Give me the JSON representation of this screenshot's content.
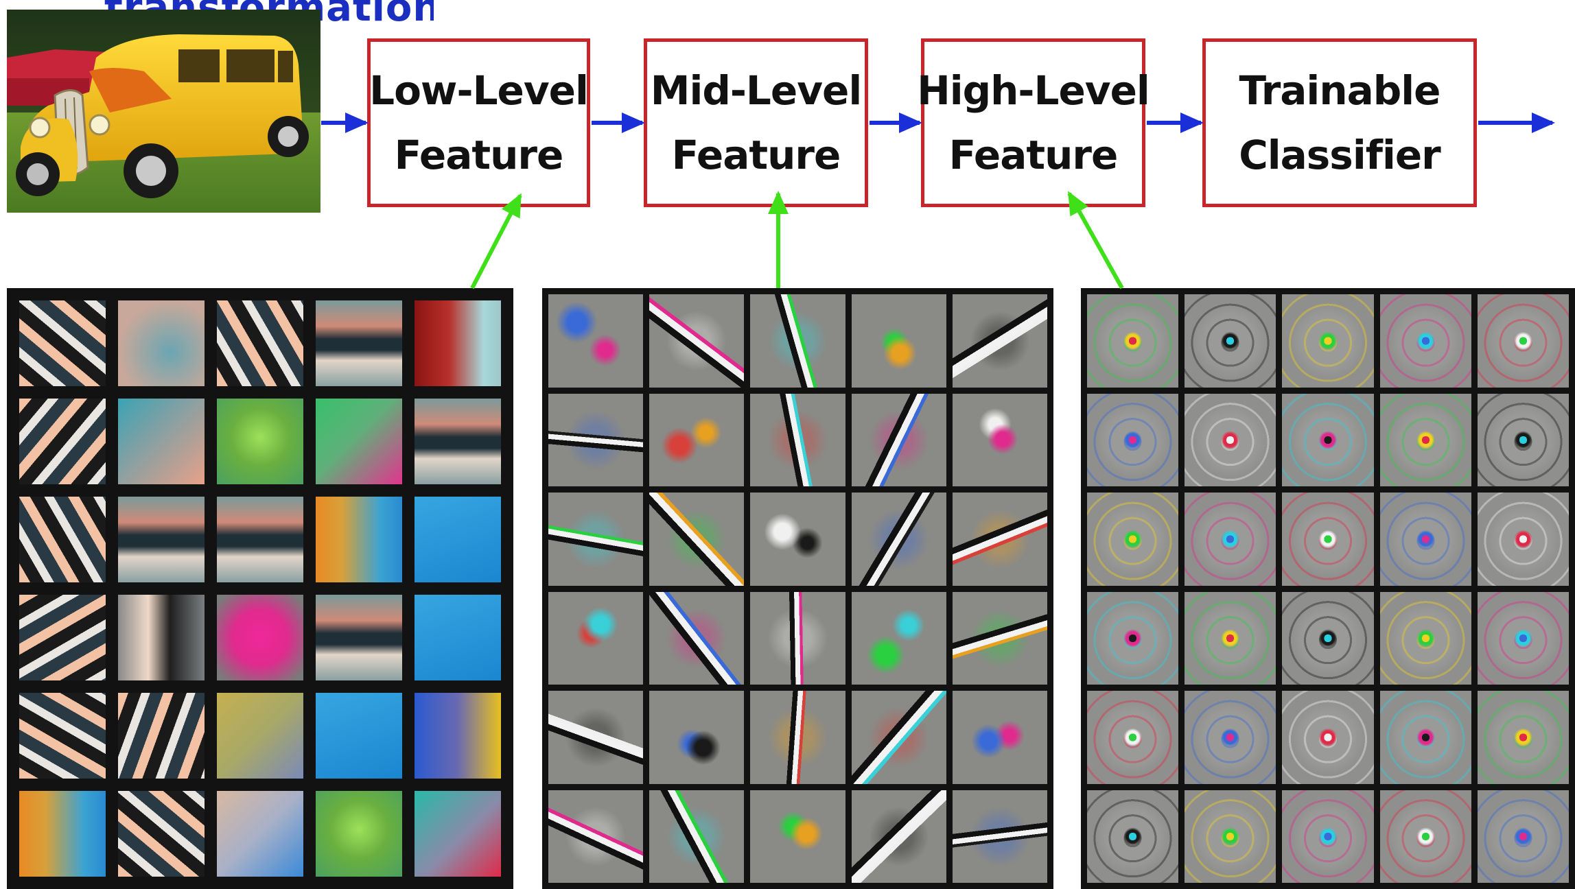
{
  "title_partial": "transformation",
  "input_image": {
    "description": "yellow vintage car on grass",
    "car_color": "#f2c51a",
    "grass_color": "#5f8c2a"
  },
  "stages": [
    {
      "line1": "Low-Level",
      "line2": "Feature"
    },
    {
      "line1": "Mid-Level",
      "line2": "Feature"
    },
    {
      "line1": "High-Level",
      "line2": "Feature"
    },
    {
      "line1": "Trainable",
      "line2": "Classifier"
    }
  ],
  "colors": {
    "flow_arrow": "#1a2fd8",
    "feedback_arrow": "#3fe01a",
    "box_border": "#c8262b",
    "title": "#1a2fbf"
  },
  "feature_panels": [
    {
      "name": "low-level-filters",
      "rows": 6,
      "cols": 5,
      "cells": [
        [
          "stripes-diag",
          "blur-peach",
          "stripes-diag",
          "stripe-horiz",
          "red-cyan"
        ],
        [
          "stripes-diag",
          "peach-teal",
          "green-blob",
          "green-magenta",
          "stripe-horiz"
        ],
        [
          "stripes-diag",
          "stripe-horiz",
          "stripe-horiz",
          "orange-blue",
          "blue-flat"
        ],
        [
          "stripes-diag",
          "stripe-vert",
          "magenta-blob",
          "stripe-horiz",
          "blue-flat"
        ],
        [
          "stripes-diag",
          "stripes-diag",
          "yellow-blue",
          "blue-flat",
          "blue-yellow"
        ],
        [
          "orange-blue",
          "stripes-diag",
          "peach-blue",
          "green-blob",
          "teal-red"
        ]
      ]
    },
    {
      "name": "mid-level-filters",
      "rows": 6,
      "cols": 5
    },
    {
      "name": "high-level-filters",
      "rows": 6,
      "cols": 5
    }
  ]
}
